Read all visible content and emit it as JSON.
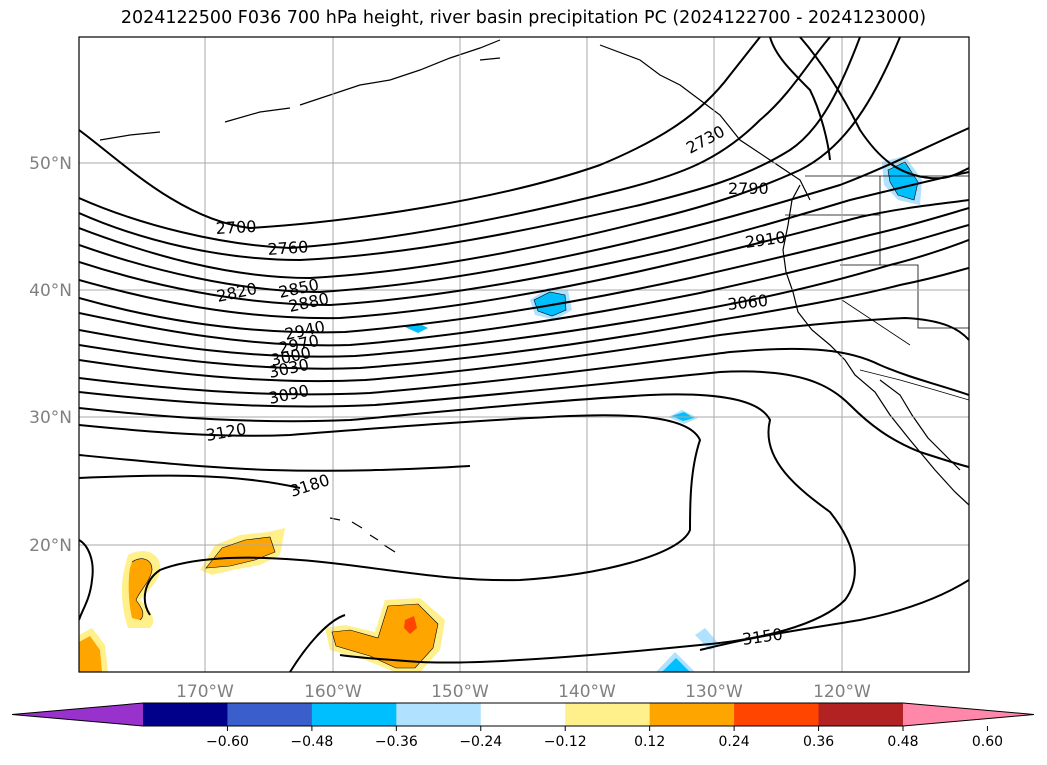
{
  "title": "2024122500 F036 700 hPa height, river basin precipitation PC (2024122700 - 2024123000)",
  "lat_labels": [
    "50°N",
    "40°N",
    "30°N",
    "20°N"
  ],
  "lon_labels": [
    "170°W",
    "160°W",
    "150°W",
    "140°W",
    "130°W",
    "120°W"
  ],
  "contour_labels": [
    "2700",
    "2760",
    "2820",
    "2850",
    "2880",
    "2940",
    "2970",
    "3000",
    "3030",
    "3090",
    "3120",
    "3180",
    "2730",
    "2790",
    "2910",
    "3060",
    "3150"
  ],
  "colorbar": {
    "ticks": [
      "−0.60",
      "−0.48",
      "−0.36",
      "−0.24",
      "−0.12",
      "0.12",
      "0.24",
      "0.36",
      "0.48",
      "0.60"
    ],
    "colors": [
      "#9932cc",
      "#00008b",
      "#3a5fcd",
      "#00bfff",
      "#b0e2ff",
      "#ffffff",
      "#fff08c",
      "#ffa500",
      "#ff4500",
      "#b22222",
      "#ff88aa"
    ]
  },
  "colors": {
    "contour": "#000000",
    "grid": "#aaaaaa",
    "axis_labels": "#808080"
  }
}
